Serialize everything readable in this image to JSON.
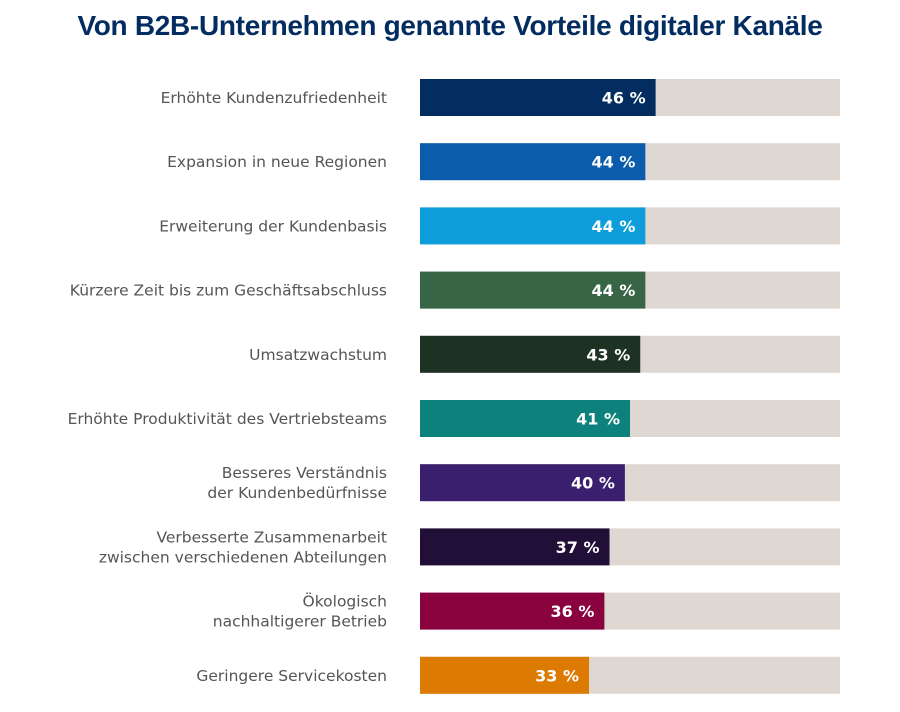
{
  "chart_data": {
    "type": "bar",
    "orientation": "horizontal",
    "title": "Von B2B-Unternehmen genannte Vorteile digitaler Kanäle",
    "xlabel": "",
    "ylabel": "",
    "unit": "%",
    "xlim": [
      0,
      82
    ],
    "grid": false,
    "legend": "none",
    "track_color": "#dfd7d1",
    "categories": [
      [
        "Erhöhte Kundenzufriedenheit"
      ],
      [
        "Expansion in neue Regionen"
      ],
      [
        "Erweiterung der Kundenbasis"
      ],
      [
        "Kürzere Zeit bis zum Geschäftsabschluss"
      ],
      [
        "Umsatzwachstum"
      ],
      [
        "Erhöhte Produktivität des Vertriebsteams"
      ],
      [
        "Besseres Verständnis",
        "der Kundenbedürfnisse"
      ],
      [
        "Verbesserte Zusammenarbeit",
        "zwischen verschiedenen Abteilungen"
      ],
      [
        "Ökologisch",
        "nachhaltigerer Betrieb"
      ],
      [
        "Geringere Servicekosten"
      ]
    ],
    "values": [
      46,
      44,
      44,
      44,
      43,
      41,
      40,
      37,
      36,
      33
    ],
    "labels": [
      "46 %",
      "44 %",
      "44 %",
      "44 %",
      "43 %",
      "41 %",
      "40 %",
      "37 %",
      "36 %",
      "33 %"
    ],
    "colors": [
      "#032d60",
      "#0b5cab",
      "#0d9dda",
      "#396547",
      "#1e3224",
      "#0d827c",
      "#3a1f6e",
      "#220f38",
      "#8a033e",
      "#dd7a01"
    ]
  }
}
